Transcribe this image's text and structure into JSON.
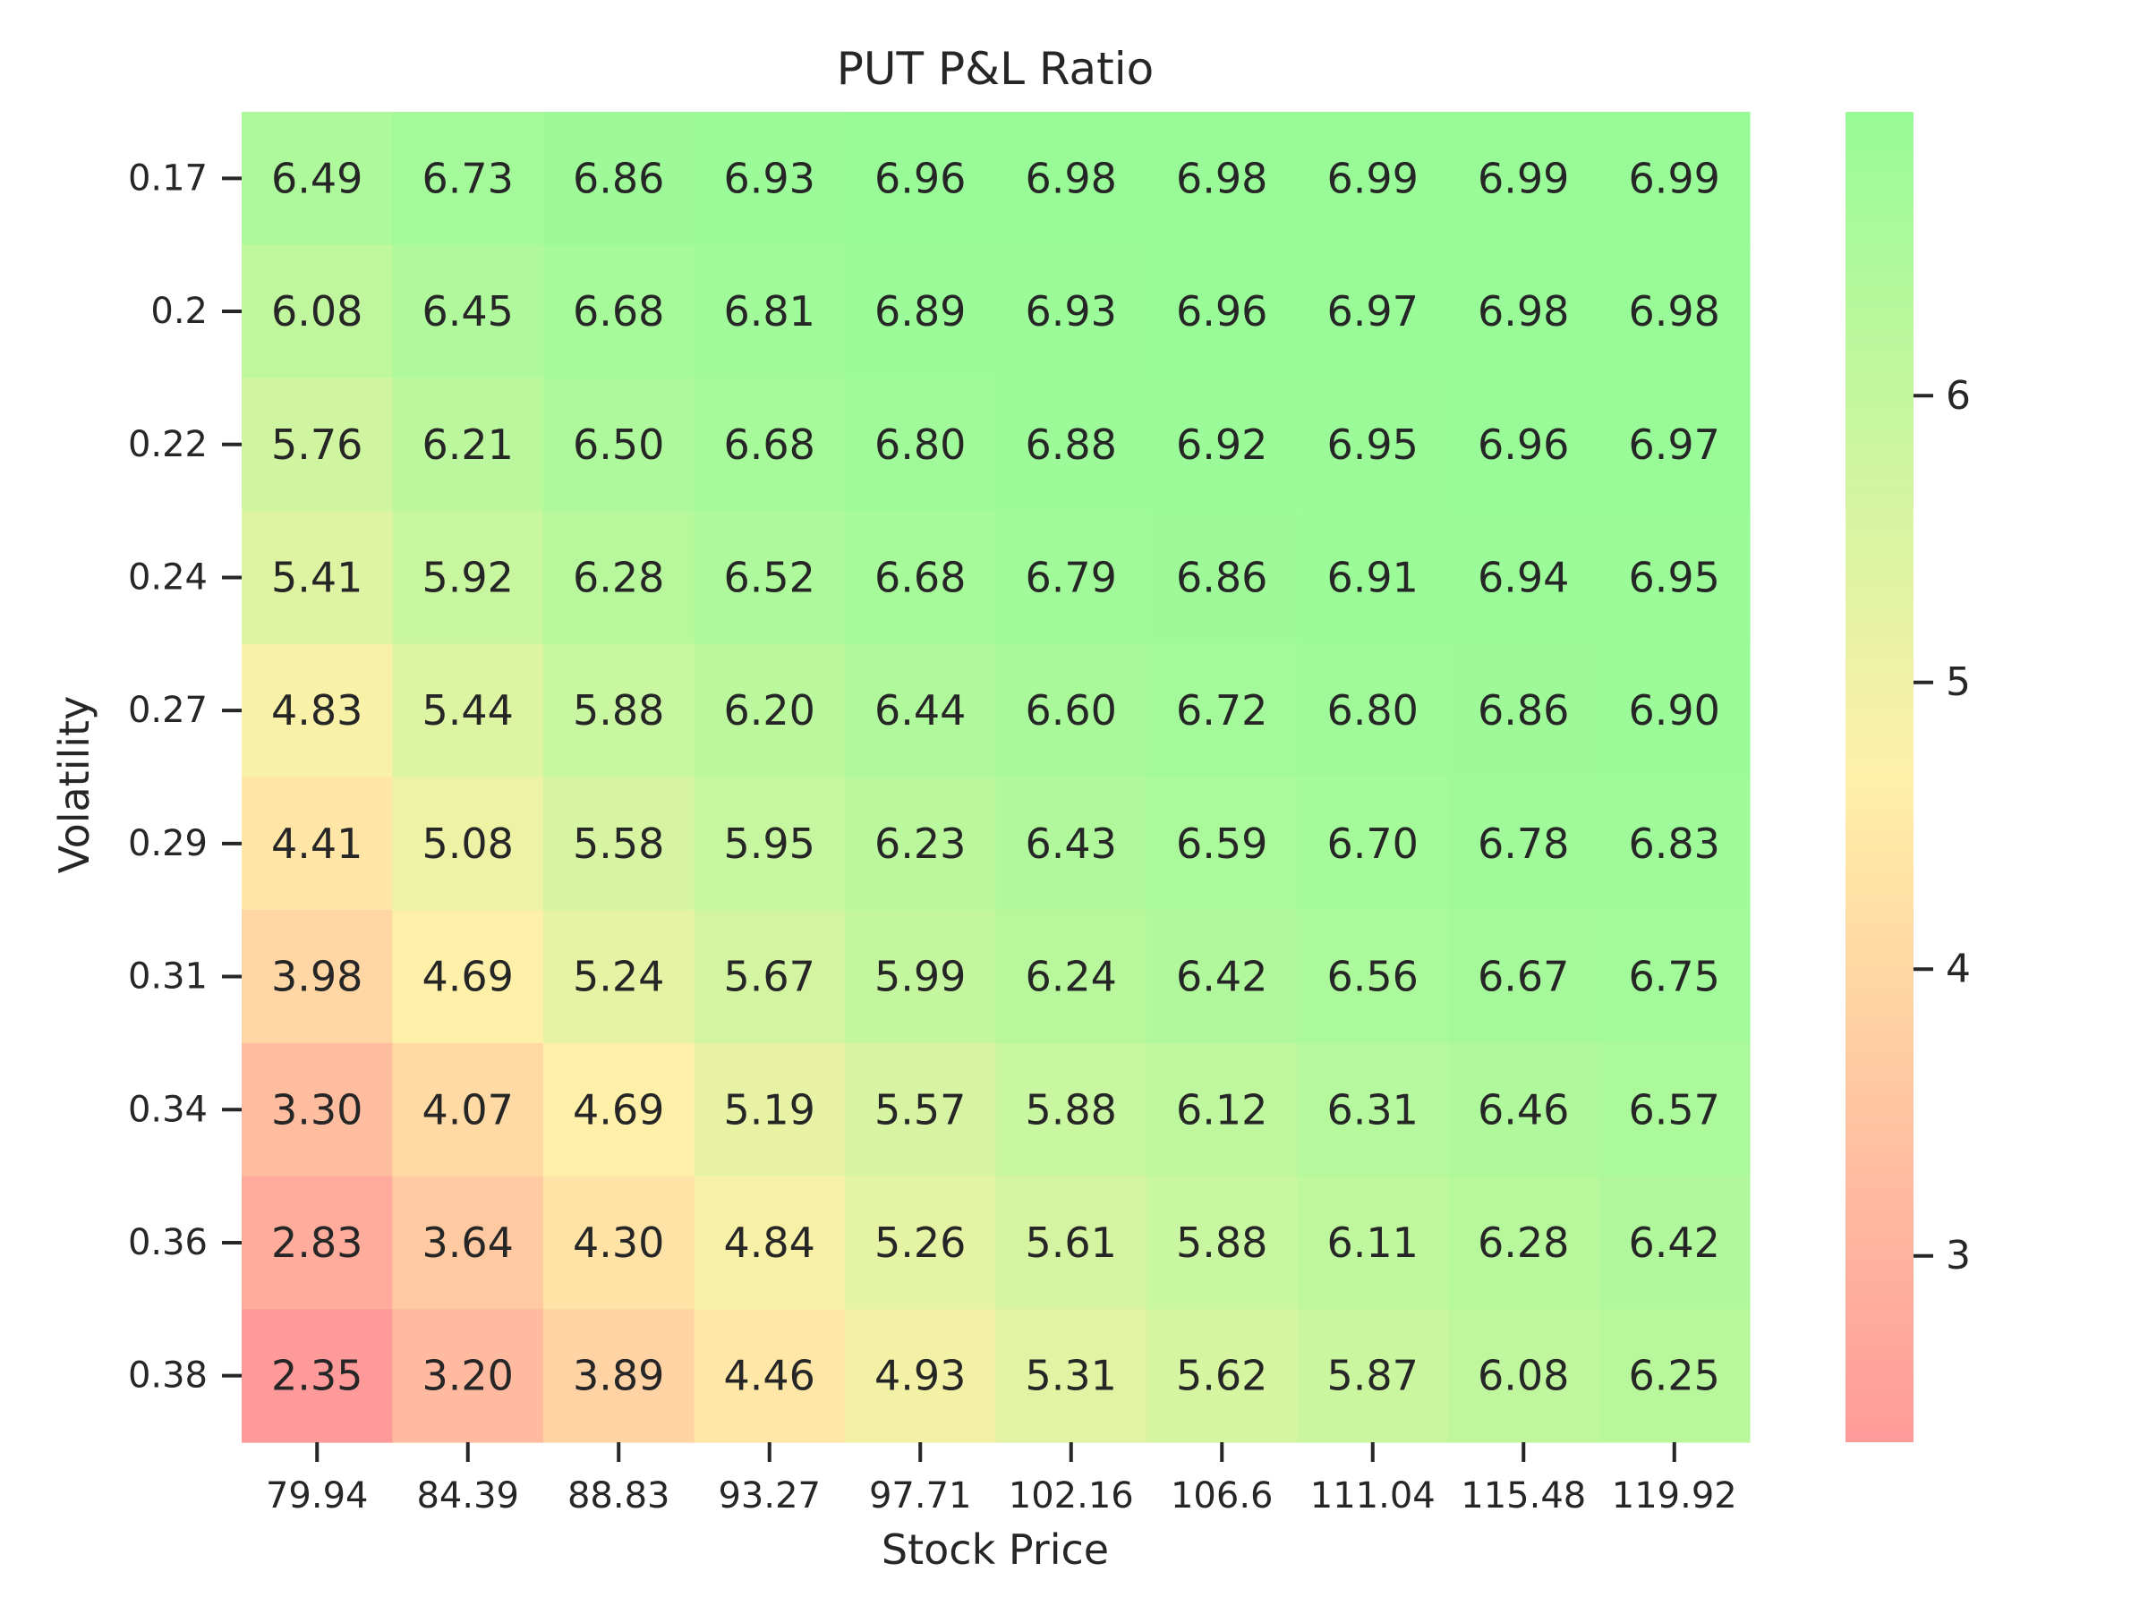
{
  "chart_data": {
    "type": "heatmap",
    "title": "PUT P&L Ratio",
    "xlabel": "Stock Price",
    "ylabel": "Volatility",
    "x_categories": [
      "79.94",
      "84.39",
      "88.83",
      "93.27",
      "97.71",
      "102.16",
      "106.6",
      "111.04",
      "115.48",
      "119.92"
    ],
    "y_categories": [
      "0.17",
      "0.2",
      "0.22",
      "0.24",
      "0.27",
      "0.29",
      "0.31",
      "0.34",
      "0.36",
      "0.38"
    ],
    "values": [
      [
        "6.49",
        "6.73",
        "6.86",
        "6.93",
        "6.96",
        "6.98",
        "6.98",
        "6.99",
        "6.99",
        "6.99"
      ],
      [
        "6.08",
        "6.45",
        "6.68",
        "6.81",
        "6.89",
        "6.93",
        "6.96",
        "6.97",
        "6.98",
        "6.98"
      ],
      [
        "5.76",
        "6.21",
        "6.50",
        "6.68",
        "6.80",
        "6.88",
        "6.92",
        "6.95",
        "6.96",
        "6.97"
      ],
      [
        "5.41",
        "5.92",
        "6.28",
        "6.52",
        "6.68",
        "6.79",
        "6.86",
        "6.91",
        "6.94",
        "6.95"
      ],
      [
        "4.83",
        "5.44",
        "5.88",
        "6.20",
        "6.44",
        "6.60",
        "6.72",
        "6.80",
        "6.86",
        "6.90"
      ],
      [
        "4.41",
        "5.08",
        "5.58",
        "5.95",
        "6.23",
        "6.43",
        "6.59",
        "6.70",
        "6.78",
        "6.83"
      ],
      [
        "3.98",
        "4.69",
        "5.24",
        "5.67",
        "5.99",
        "6.24",
        "6.42",
        "6.56",
        "6.67",
        "6.75"
      ],
      [
        "3.30",
        "4.07",
        "4.69",
        "5.19",
        "5.57",
        "5.88",
        "6.12",
        "6.31",
        "6.46",
        "6.57"
      ],
      [
        "2.83",
        "3.64",
        "4.30",
        "4.84",
        "5.26",
        "5.61",
        "5.88",
        "6.11",
        "6.28",
        "6.42"
      ],
      [
        "2.35",
        "3.20",
        "3.89",
        "4.46",
        "4.93",
        "5.31",
        "5.62",
        "5.87",
        "6.08",
        "6.25"
      ]
    ],
    "colorbar": {
      "min": 2.35,
      "max": 6.99,
      "ticks": [
        "3",
        "4",
        "5",
        "6"
      ],
      "colors": [
        "#ff9a9a",
        "#fff0a8",
        "#98fb98"
      ]
    },
    "grid": false
  }
}
